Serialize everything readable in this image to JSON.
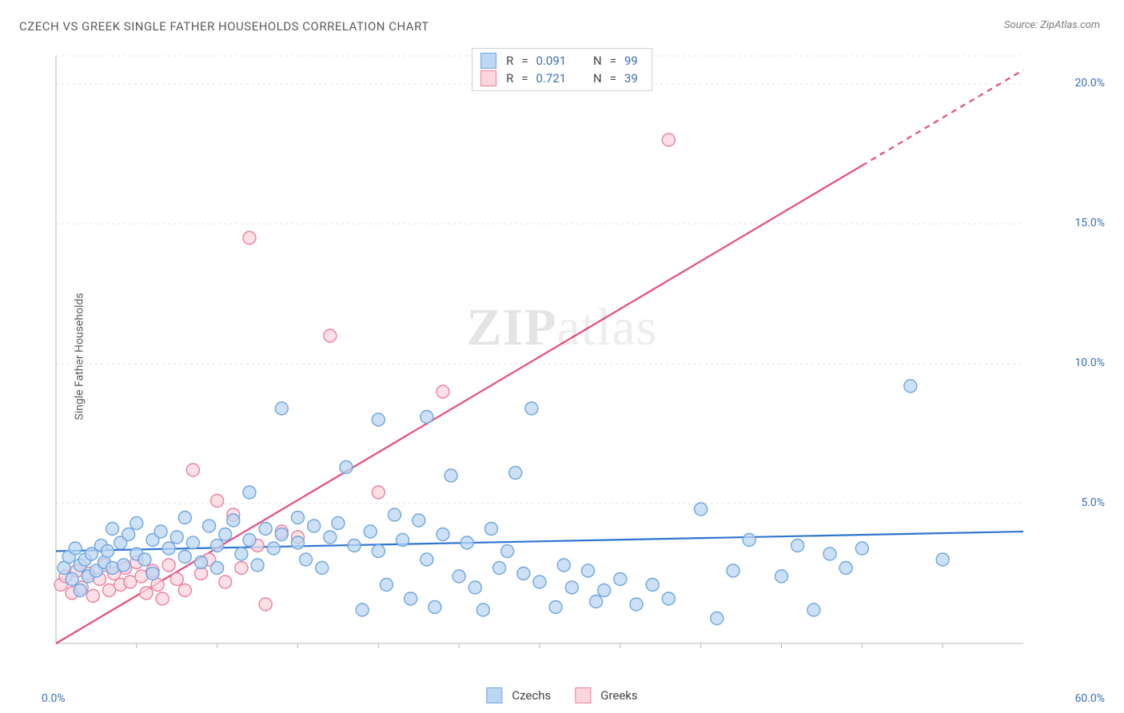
{
  "title": "CZECH VS GREEK SINGLE FATHER HOUSEHOLDS CORRELATION CHART",
  "source": "Source: ZipAtlas.com",
  "ylabel": "Single Father Households",
  "watermark": {
    "left": "ZIP",
    "right": "atlas"
  },
  "chart": {
    "type": "scatter",
    "background_color": "#ffffff",
    "grid_color": "#e0e0e0",
    "axis_color": "#b8b8b8",
    "tick_color": "#b8b8b8",
    "x": {
      "min": 0,
      "max": 60,
      "label_min": "0.0%",
      "label_max": "60.0%",
      "ticks": [
        5,
        10,
        15,
        20,
        25,
        30,
        35,
        40,
        45,
        50,
        55
      ]
    },
    "y": {
      "min": 0,
      "max": 21,
      "gridlines": [
        5,
        10,
        15,
        20
      ],
      "labels": [
        "5.0%",
        "10.0%",
        "15.0%",
        "20.0%"
      ]
    },
    "series": [
      {
        "id": "czechs",
        "label": "Czechs",
        "marker_fill": "#bcd7f3",
        "marker_stroke": "#6fa6e0",
        "marker_r": 8,
        "line_color": "#2e74d0",
        "line_y0": 3.3,
        "line_y60": 4.0,
        "stats": {
          "R": "0.091",
          "N": "99"
        },
        "points": [
          [
            0.5,
            2.7
          ],
          [
            0.8,
            3.1
          ],
          [
            1.0,
            2.3
          ],
          [
            1.2,
            3.4
          ],
          [
            1.5,
            2.8
          ],
          [
            1.5,
            1.9
          ],
          [
            1.8,
            3.0
          ],
          [
            2.0,
            2.4
          ],
          [
            2.2,
            3.2
          ],
          [
            2.5,
            2.6
          ],
          [
            2.8,
            3.5
          ],
          [
            3.0,
            2.9
          ],
          [
            3.2,
            3.3
          ],
          [
            3.5,
            2.7
          ],
          [
            3.5,
            4.1
          ],
          [
            4.0,
            3.6
          ],
          [
            4.2,
            2.8
          ],
          [
            4.5,
            3.9
          ],
          [
            5.0,
            3.2
          ],
          [
            5.0,
            4.3
          ],
          [
            5.5,
            3.0
          ],
          [
            6.0,
            3.7
          ],
          [
            6.0,
            2.5
          ],
          [
            6.5,
            4.0
          ],
          [
            7.0,
            3.4
          ],
          [
            7.5,
            3.8
          ],
          [
            8.0,
            3.1
          ],
          [
            8.0,
            4.5
          ],
          [
            8.5,
            3.6
          ],
          [
            9.0,
            2.9
          ],
          [
            9.5,
            4.2
          ],
          [
            10.0,
            3.5
          ],
          [
            10.0,
            2.7
          ],
          [
            10.5,
            3.9
          ],
          [
            11.0,
            4.4
          ],
          [
            11.5,
            3.2
          ],
          [
            12.0,
            3.7
          ],
          [
            12.0,
            5.4
          ],
          [
            12.5,
            2.8
          ],
          [
            13.0,
            4.1
          ],
          [
            13.5,
            3.4
          ],
          [
            14.0,
            3.9
          ],
          [
            14.0,
            8.4
          ],
          [
            15.0,
            3.6
          ],
          [
            15.0,
            4.5
          ],
          [
            15.5,
            3.0
          ],
          [
            16.0,
            4.2
          ],
          [
            16.5,
            2.7
          ],
          [
            17.0,
            3.8
          ],
          [
            17.5,
            4.3
          ],
          [
            18.0,
            6.3
          ],
          [
            18.5,
            3.5
          ],
          [
            19.0,
            1.2
          ],
          [
            19.5,
            4.0
          ],
          [
            20.0,
            8.0
          ],
          [
            20.0,
            3.3
          ],
          [
            20.5,
            2.1
          ],
          [
            21.0,
            4.6
          ],
          [
            21.5,
            3.7
          ],
          [
            22.0,
            1.6
          ],
          [
            22.5,
            4.4
          ],
          [
            23.0,
            3.0
          ],
          [
            23.0,
            8.1
          ],
          [
            23.5,
            1.3
          ],
          [
            24.0,
            3.9
          ],
          [
            24.5,
            6.0
          ],
          [
            25.0,
            2.4
          ],
          [
            25.5,
            3.6
          ],
          [
            26.0,
            2.0
          ],
          [
            26.5,
            1.2
          ],
          [
            27.0,
            4.1
          ],
          [
            27.5,
            2.7
          ],
          [
            28.0,
            3.3
          ],
          [
            28.5,
            6.1
          ],
          [
            29.0,
            2.5
          ],
          [
            29.5,
            8.4
          ],
          [
            30.0,
            2.2
          ],
          [
            31.0,
            1.3
          ],
          [
            31.5,
            2.8
          ],
          [
            32.0,
            2.0
          ],
          [
            33.0,
            2.6
          ],
          [
            33.5,
            1.5
          ],
          [
            34.0,
            1.9
          ],
          [
            35.0,
            2.3
          ],
          [
            36.0,
            1.4
          ],
          [
            37.0,
            2.1
          ],
          [
            38.0,
            1.6
          ],
          [
            40.0,
            4.8
          ],
          [
            41.0,
            0.9
          ],
          [
            42.0,
            2.6
          ],
          [
            43.0,
            3.7
          ],
          [
            45.0,
            2.4
          ],
          [
            46.0,
            3.5
          ],
          [
            47.0,
            1.2
          ],
          [
            48.0,
            3.2
          ],
          [
            49.0,
            2.7
          ],
          [
            50.0,
            3.4
          ],
          [
            53.0,
            9.2
          ],
          [
            55.0,
            3.0
          ]
        ]
      },
      {
        "id": "greeks",
        "label": "Greeks",
        "marker_fill": "#fbd5df",
        "marker_stroke": "#ec809f",
        "marker_r": 8,
        "line_color": "#e84c7a",
        "line_y0": 0.0,
        "line_y60": 20.5,
        "line_solid_until_x": 50,
        "stats": {
          "R": "0.721",
          "N": "39"
        },
        "points": [
          [
            0.3,
            2.1
          ],
          [
            0.6,
            2.4
          ],
          [
            1.0,
            1.8
          ],
          [
            1.3,
            2.6
          ],
          [
            1.6,
            2.0
          ],
          [
            2.0,
            2.5
          ],
          [
            2.3,
            1.7
          ],
          [
            2.7,
            2.3
          ],
          [
            3.0,
            2.8
          ],
          [
            3.3,
            1.9
          ],
          [
            3.6,
            2.5
          ],
          [
            4.0,
            2.1
          ],
          [
            4.3,
            2.7
          ],
          [
            4.6,
            2.2
          ],
          [
            5.0,
            2.9
          ],
          [
            5.3,
            2.4
          ],
          [
            5.6,
            1.8
          ],
          [
            6.0,
            2.6
          ],
          [
            6.3,
            2.1
          ],
          [
            6.6,
            1.6
          ],
          [
            7.0,
            2.8
          ],
          [
            7.5,
            2.3
          ],
          [
            8.0,
            1.9
          ],
          [
            8.5,
            6.2
          ],
          [
            9.0,
            2.5
          ],
          [
            9.5,
            3.0
          ],
          [
            10.0,
            5.1
          ],
          [
            10.5,
            2.2
          ],
          [
            11.0,
            4.6
          ],
          [
            11.5,
            2.7
          ],
          [
            12.0,
            14.5
          ],
          [
            12.5,
            3.5
          ],
          [
            13.0,
            1.4
          ],
          [
            14.0,
            4.0
          ],
          [
            15.0,
            3.8
          ],
          [
            17.0,
            11.0
          ],
          [
            20.0,
            5.4
          ],
          [
            24.0,
            9.0
          ],
          [
            38.0,
            18.0
          ]
        ]
      }
    ]
  },
  "legend_top": {
    "R_label": "R",
    "N_label": "N",
    "eq": "="
  },
  "legend_bottom": {
    "items": [
      "Czechs",
      "Greeks"
    ]
  }
}
